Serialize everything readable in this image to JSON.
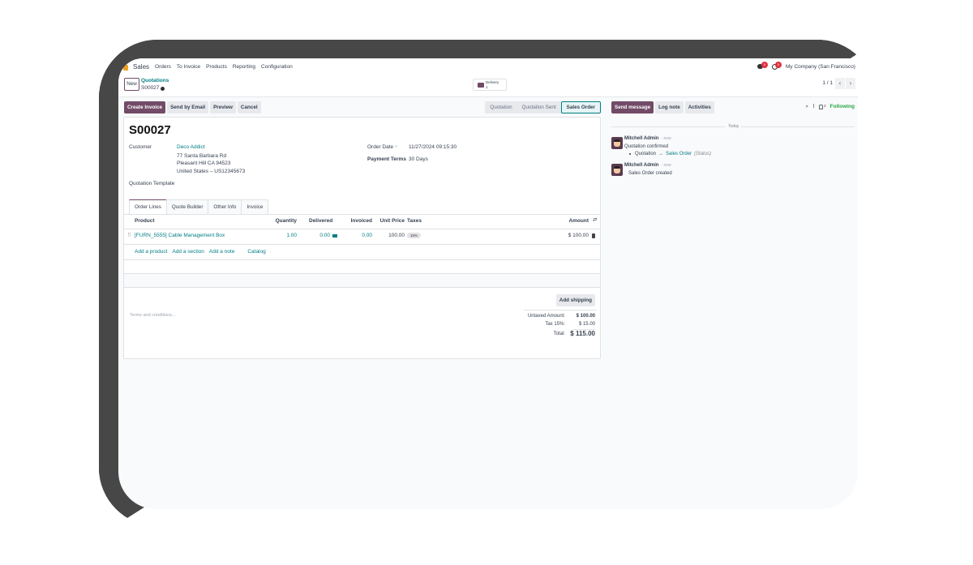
{
  "nav": {
    "app": "Sales",
    "menu": [
      "Orders",
      "To Invoice",
      "Products",
      "Reporting",
      "Configuration"
    ],
    "company": "My Company (San Francisco)",
    "messages_count": "0",
    "activities_count": "0"
  },
  "control": {
    "new_label": "New",
    "breadcrumb_parent": "Quotations",
    "breadcrumb_current": "S00027",
    "delivery_label": "Delivery",
    "delivery_count": "1",
    "pager": "1 / 1"
  },
  "actions": {
    "create_invoice": "Create Invoice",
    "send_email": "Send by Email",
    "preview": "Preview",
    "cancel": "Cancel"
  },
  "statusbar": {
    "steps": [
      "Quotation",
      "Quotation Sent",
      "Sales Order"
    ],
    "active": "Sales Order"
  },
  "form": {
    "title": "S00027",
    "customer_label": "Customer",
    "customer": "Deco Addict",
    "address": [
      "77 Santa Barbara Rd",
      "Pleasant Hill CA 94523",
      "United States – US12345673"
    ],
    "order_date_label": "Order Date",
    "order_date_help": "?",
    "order_date": "11/27/2024 09:15:30",
    "payment_terms_label": "Payment Terms",
    "payment_terms": "30 Days",
    "template_label": "Quotation Template"
  },
  "tabs": [
    "Order Lines",
    "Quote Builder",
    "Other Info",
    "Invoice"
  ],
  "table": {
    "headers": {
      "product": "Product",
      "quantity": "Quantity",
      "delivered": "Delivered",
      "invoiced": "Invoiced",
      "unit_price": "Unit Price",
      "taxes": "Taxes",
      "amount": "Amount"
    },
    "rows": [
      {
        "product": "[FURN_5555] Cable Management Box",
        "quantity": "1.00",
        "delivered": "0.00",
        "invoiced": "0.00",
        "unit_price": "100.00",
        "taxes": "15%",
        "amount": "$ 100.00"
      }
    ],
    "add_links": [
      "Add a product",
      "Add a section",
      "Add a note",
      "Catalog"
    ]
  },
  "footer": {
    "add_shipping": "Add shipping",
    "terms_placeholder": "Terms and conditions...",
    "untaxed_label": "Untaxed Amount:",
    "untaxed": "$ 100.00",
    "tax_label": "Tax 15%:",
    "tax": "$ 15.00",
    "total_label": "Total:",
    "total": "$ 115.00"
  },
  "chatter": {
    "send_message": "Send message",
    "log_note": "Log note",
    "activities": "Activities",
    "followers": "2",
    "following": "Following",
    "date_sep": "Today",
    "messages": [
      {
        "author": "Mitchell Admin",
        "time": "- now",
        "body": "Quotation confirmed",
        "change_from": "Quotation",
        "change_to": "Sales Order",
        "change_field": "(Status)"
      },
      {
        "author": "Mitchell Admin",
        "time": "- now",
        "body": "Sales Order created"
      }
    ]
  },
  "colors": {
    "brand": "#714b67",
    "link": "#017e84",
    "following": "#28a745"
  }
}
